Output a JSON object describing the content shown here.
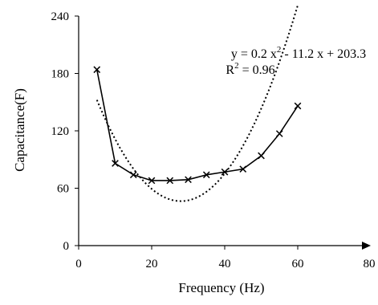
{
  "chart_data": {
    "type": "scatter",
    "xlabel": "Frequency (Hz)",
    "ylabel": "Capacitance(F)",
    "xlim": [
      0,
      80
    ],
    "ylim": [
      0,
      240
    ],
    "x_ticks": [
      0,
      20,
      40,
      60,
      80
    ],
    "y_ticks": [
      0,
      60,
      120,
      180,
      240
    ],
    "grid": false,
    "legend": "none",
    "series": [
      {
        "marker": "x",
        "line": "solid",
        "color": "#000000",
        "x": [
          5,
          10,
          15,
          20,
          25,
          30,
          35,
          40,
          45,
          50,
          55,
          60
        ],
        "y": [
          184,
          86,
          74,
          68,
          68,
          69,
          74,
          77,
          80,
          94,
          117,
          146
        ]
      }
    ],
    "trendline": {
      "type": "polynomial",
      "order": 2,
      "coefficients": [
        0.2,
        -11.2,
        203.3
      ],
      "x_range": [
        5,
        60
      ],
      "line": "dotted",
      "color": "#000000"
    },
    "annotations": {
      "equation_prefix": "y = 0.2 x",
      "equation_sup": "2",
      "equation_suffix": " - 11.2 x + 203.3",
      "r2_prefix": "R",
      "r2_sup": "2",
      "r2_suffix": " = 0.96"
    }
  }
}
